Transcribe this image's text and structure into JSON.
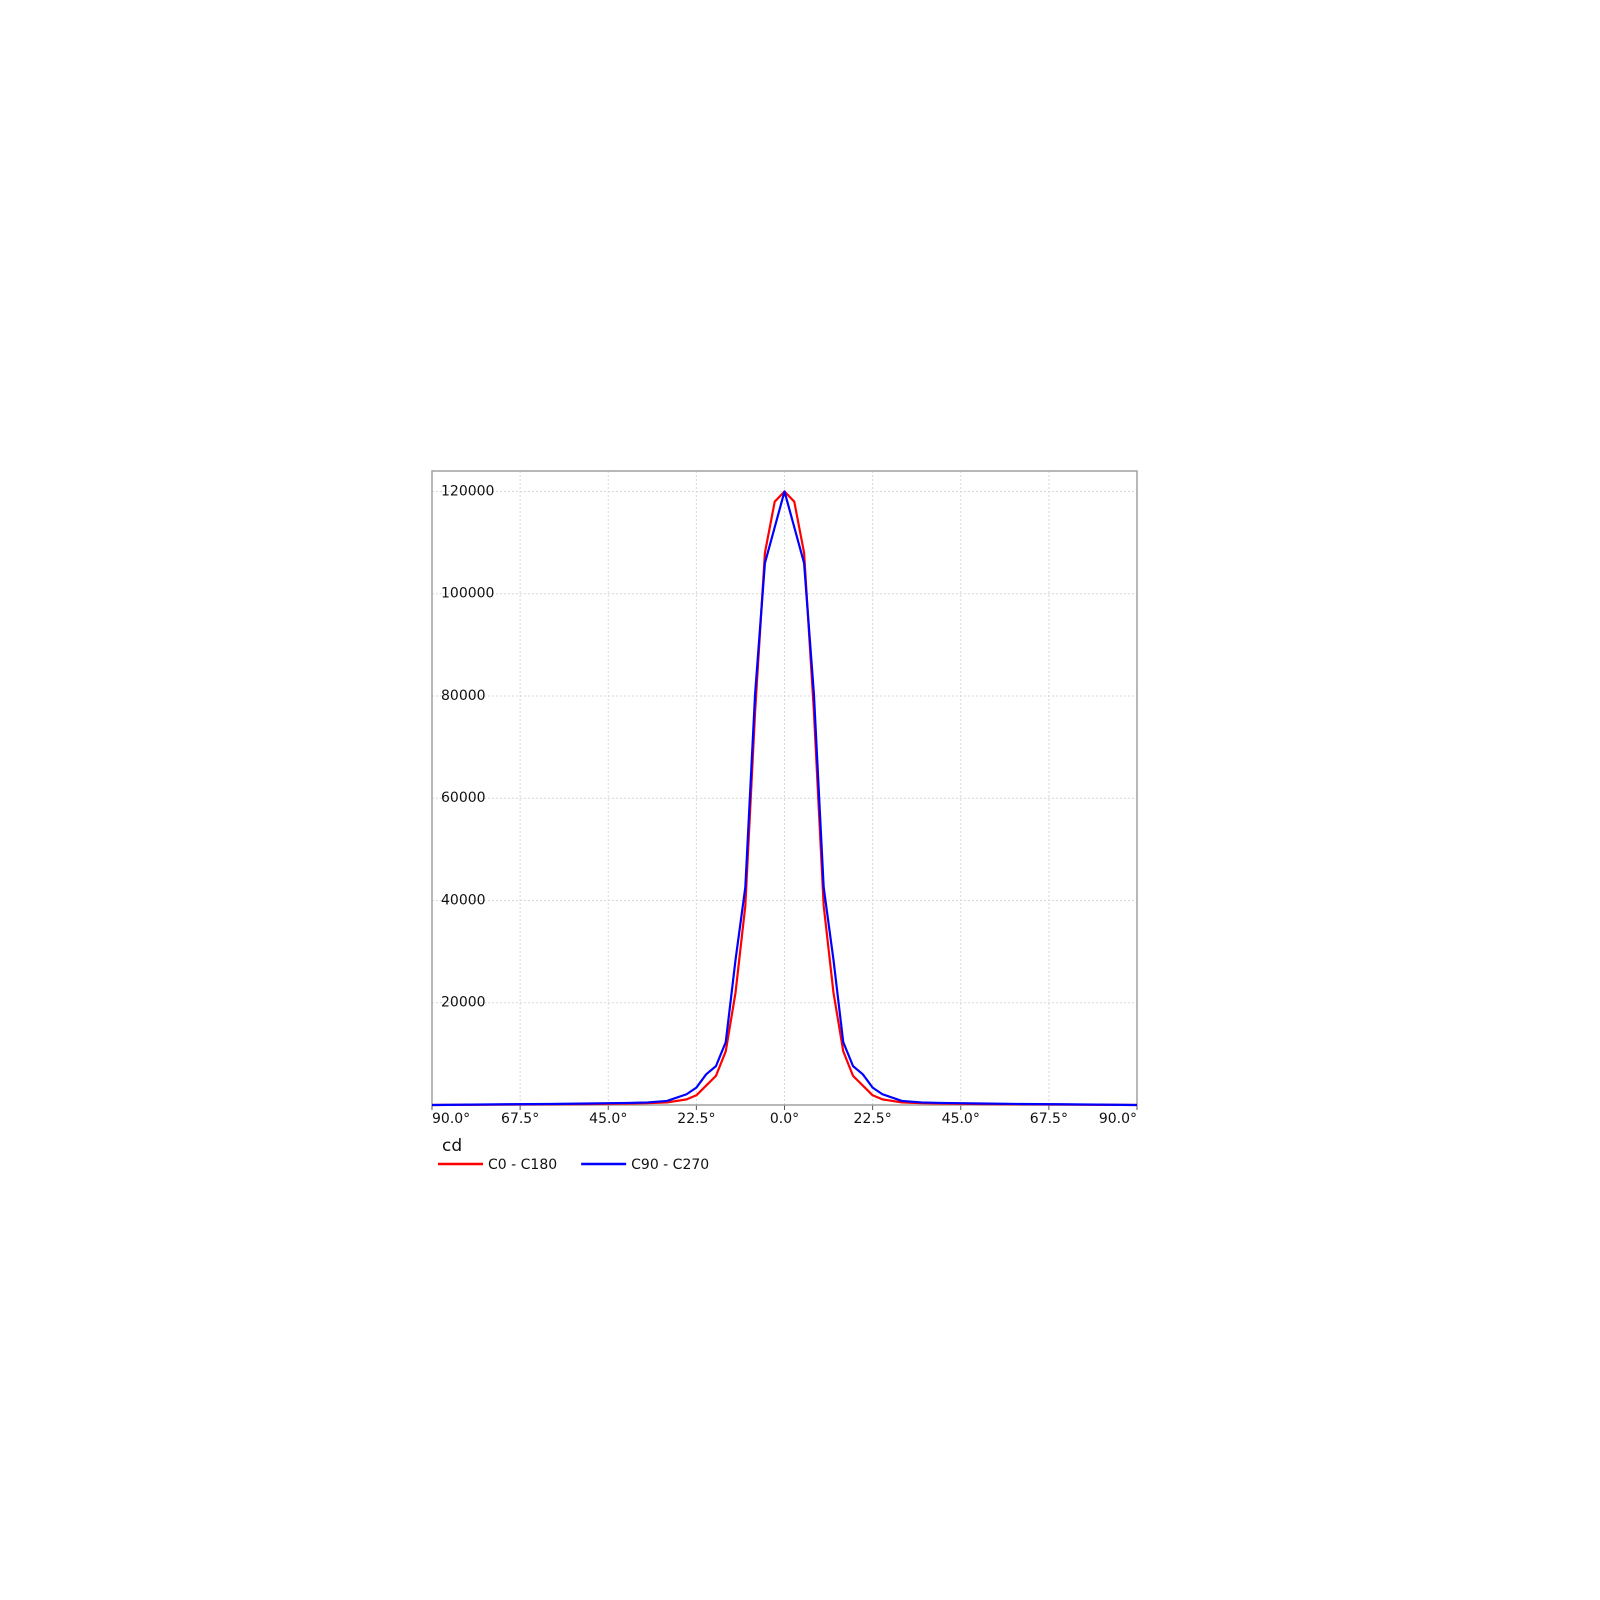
{
  "chart_data": {
    "type": "line",
    "x": [
      -90,
      -80,
      -70,
      -60,
      -50,
      -45,
      -40,
      -35,
      -30,
      -25,
      -22.5,
      -20,
      -17.5,
      -15,
      -12.5,
      -10,
      -7.5,
      -5,
      -2.5,
      0,
      2.5,
      5,
      7.5,
      10,
      12.5,
      15,
      17.5,
      20,
      22.5,
      25,
      30,
      35,
      40,
      45,
      50,
      60,
      70,
      80,
      90
    ],
    "series": [
      {
        "name": "C0 - C180",
        "color": "#ff0000",
        "values": [
          0,
          50,
          100,
          150,
          200,
          250,
          300,
          350,
          500,
          1100,
          1900,
          3800,
          5700,
          10500,
          22000,
          39000,
          77000,
          108000,
          118000,
          120000,
          118000,
          108000,
          77000,
          39000,
          22000,
          10500,
          5700,
          3800,
          1900,
          1100,
          500,
          350,
          300,
          250,
          200,
          150,
          100,
          50,
          0
        ]
      },
      {
        "name": "C90 - C270",
        "color": "#0000ff",
        "values": [
          0,
          80,
          150,
          200,
          300,
          350,
          400,
          500,
          800,
          2100,
          3400,
          6000,
          7600,
          12300,
          28400,
          42600,
          80500,
          106000,
          113000,
          120000,
          113000,
          106000,
          80500,
          42600,
          28400,
          12300,
          7600,
          6000,
          3400,
          2100,
          800,
          500,
          400,
          350,
          300,
          200,
          150,
          80,
          0
        ]
      }
    ],
    "xlim": [
      -90,
      90
    ],
    "xticks": [
      {
        "value": -90,
        "label": "90.0°"
      },
      {
        "value": -67.5,
        "label": "67.5°"
      },
      {
        "value": -45,
        "label": "45.0°"
      },
      {
        "value": -22.5,
        "label": "22.5°"
      },
      {
        "value": 0,
        "label": "0.0°"
      },
      {
        "value": 22.5,
        "label": "22.5°"
      },
      {
        "value": 45,
        "label": "45.0°"
      },
      {
        "value": 67.5,
        "label": "67.5°"
      },
      {
        "value": 90,
        "label": "90.0°"
      }
    ],
    "ylim": [
      0,
      124000
    ],
    "yticks": [
      20000,
      40000,
      60000,
      80000,
      100000,
      120000
    ],
    "ylabel": "cd",
    "grid": true
  }
}
